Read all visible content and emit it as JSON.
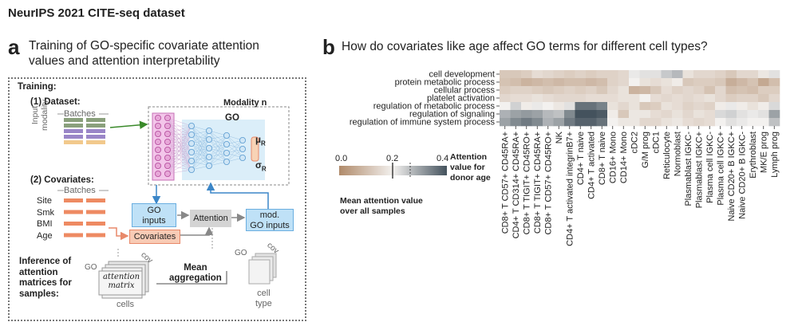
{
  "figure_title": "NeurIPS 2021 CITE-seq dataset",
  "panel_a": {
    "letter": "a",
    "heading_line1": "Training of GO-specific covariate attention",
    "heading_line2": "values and attention interpretability",
    "training_label": "Training:",
    "dataset_label": "(1) Dataset:",
    "batches_label": "Batches",
    "input_modality_line1": "Input",
    "input_modality_line2": "modality",
    "modality_n_label": "Modality n",
    "go_label": "GO",
    "mu_label": "μ",
    "mu_sub": "R",
    "sigma_label": "σ",
    "sigma_sub": "R",
    "covariates_section_label": "(2) Covariates:",
    "covariate_names": [
      "Site",
      "Smk",
      "BMI",
      "Age"
    ],
    "go_inputs_line1": "GO",
    "go_inputs_line2": "inputs",
    "attention_label": "Attention",
    "covariates_box_label": "Covariates",
    "mod_go_inputs_line1": "mod.",
    "mod_go_inputs_line2": "GO inputs",
    "inference_line1": "Inference of",
    "inference_line2": "attention",
    "inference_line3": "matrices for",
    "inference_line4": "samples:",
    "go_small": "GO",
    "cov_small": "cov",
    "attention_matrix_line1": "attention",
    "attention_matrix_line2": "matrix",
    "cells_label": "cells",
    "mean_aggregation_line1": "Mean",
    "mean_aggregation_line2": "aggregation",
    "cell_type_line1": "cell",
    "cell_type_line2": "type"
  },
  "panel_b": {
    "letter": "b",
    "heading": "How do covariates like age affect GO terms for different cell types?",
    "legend": {
      "ticks": [
        "0.0",
        "0.2",
        "0.4"
      ],
      "mean_label_line1": "Mean attention value",
      "mean_label_line2": "over all samples",
      "donor_label_line1": "Attention",
      "donor_label_line2": "value for",
      "donor_label_line3": "donor age"
    }
  },
  "chart_data": {
    "type": "heatmap",
    "rows": [
      "cell development",
      "protein metabolic process",
      "cellular process",
      "platelet activation",
      "regulation of metabolic process",
      "regulation of signaling",
      "regulation of immune system process"
    ],
    "columns": [
      "CD8+ T CD57+ CD45RA+",
      "CD4+ T CD314+ CD45RA+",
      "CD8+ T TIGIT+ CD45RO+",
      "CD8+ T TIGIT+ CD45RA+",
      "CD8+ T CD57+ CD45RO+",
      "NK",
      "CD4+ T activated integrinB7+",
      "CD4+ T naive",
      "CD4+ T activated",
      "CD8+ T naive",
      "CD16+ Mono",
      "CD14+ Mono",
      "cDC2",
      "G/M prog",
      "cDC1",
      "Reticulocyte",
      "Normoblast",
      "Plasmablast IGKC-",
      "Plasmablast IGKC+",
      "Plasma cell IGKC-",
      "Plasma cell IGKC+",
      "Naive CD20+ B IGKC+",
      "Naive CD20+ B IGKC-",
      "Erythroblast",
      "MK/E prog",
      "Lymph prog"
    ],
    "values": [
      [
        0.12,
        0.12,
        0.13,
        0.16,
        0.15,
        0.14,
        0.13,
        0.14,
        0.13,
        0.14,
        0.14,
        0.15,
        0.21,
        0.22,
        0.22,
        0.25,
        0.27,
        0.17,
        0.15,
        0.15,
        0.14,
        0.12,
        0.15,
        0.15,
        0.18,
        0.22
      ],
      [
        0.11,
        0.1,
        0.08,
        0.09,
        0.1,
        0.09,
        0.1,
        0.1,
        0.09,
        0.1,
        0.14,
        0.15,
        0.2,
        0.17,
        0.16,
        0.17,
        0.19,
        0.12,
        0.13,
        0.13,
        0.12,
        0.07,
        0.09,
        0.11,
        0.06,
        0.1
      ],
      [
        0.13,
        0.14,
        0.14,
        0.13,
        0.12,
        0.13,
        0.14,
        0.13,
        0.14,
        0.12,
        0.15,
        0.17,
        0.08,
        0.09,
        0.12,
        0.16,
        0.14,
        0.15,
        0.14,
        0.11,
        0.15,
        0.1,
        0.11,
        0.1,
        0.13,
        0.13
      ],
      [
        0.15,
        0.16,
        0.16,
        0.17,
        0.16,
        0.15,
        0.15,
        0.15,
        0.16,
        0.16,
        0.16,
        0.17,
        0.17,
        0.2,
        0.16,
        0.15,
        0.16,
        0.15,
        0.16,
        0.17,
        0.15,
        0.13,
        0.14,
        0.14,
        0.12,
        0.15
      ],
      [
        0.2,
        0.24,
        0.19,
        0.21,
        0.2,
        0.18,
        0.22,
        0.36,
        0.36,
        0.34,
        0.17,
        0.15,
        0.17,
        0.12,
        0.13,
        0.17,
        0.16,
        0.14,
        0.15,
        0.14,
        0.19,
        0.21,
        0.19,
        0.17,
        0.19,
        0.23
      ],
      [
        0.28,
        0.3,
        0.31,
        0.3,
        0.27,
        0.26,
        0.33,
        0.4,
        0.4,
        0.39,
        0.19,
        0.12,
        0.18,
        0.18,
        0.16,
        0.15,
        0.17,
        0.15,
        0.17,
        0.16,
        0.23,
        0.24,
        0.22,
        0.21,
        0.22,
        0.3
      ],
      [
        0.3,
        0.33,
        0.35,
        0.33,
        0.28,
        0.3,
        0.35,
        0.38,
        0.38,
        0.36,
        0.2,
        0.18,
        0.18,
        0.15,
        0.15,
        0.17,
        0.18,
        0.16,
        0.15,
        0.16,
        0.2,
        0.22,
        0.21,
        0.2,
        0.2,
        0.26
      ]
    ],
    "color_scale": {
      "min": 0.0,
      "mid": 0.2,
      "max": 0.4,
      "low_color": "#b08a6a",
      "mid_color": "#f3f1ef",
      "high_color": "#44525d"
    }
  }
}
